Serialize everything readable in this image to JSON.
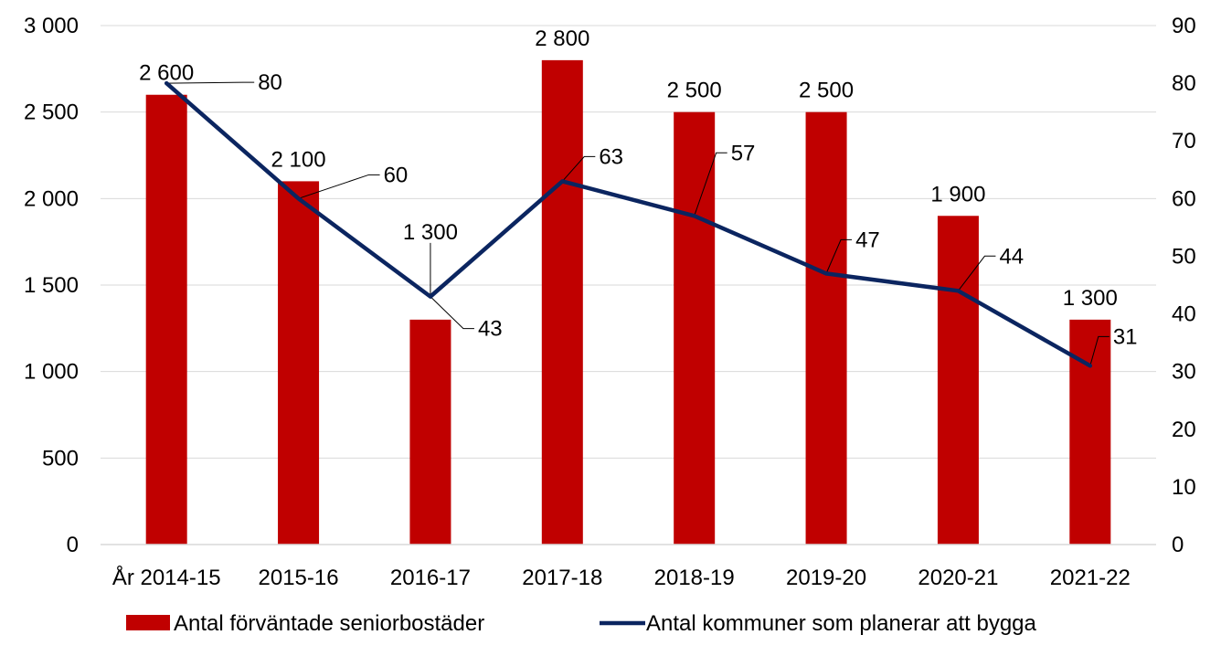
{
  "chart_data": {
    "type": "bar",
    "categories": [
      "År 2014-15",
      "2015-16",
      "2016-17",
      "2017-18",
      "2018-19",
      "2019-20",
      "2020-21",
      "2021-22"
    ],
    "series": [
      {
        "name": "Antal förväntade seniorbostäder",
        "type": "bar",
        "axis": "left",
        "color": "#c00000",
        "values": [
          2600,
          2100,
          1300,
          2800,
          2500,
          2500,
          1900,
          1300
        ],
        "labels": [
          "2 600",
          "2 100",
          "1 300",
          "2 800",
          "2 500",
          "2 500",
          "1 900",
          "1 300"
        ]
      },
      {
        "name": "Antal kommuner som planerar att bygga",
        "type": "line",
        "axis": "right",
        "color": "#0b2560",
        "values": [
          80,
          60,
          43,
          63,
          57,
          47,
          44,
          31
        ],
        "labels": [
          "80",
          "60",
          "43",
          "63",
          "57",
          "47",
          "44",
          "31"
        ]
      }
    ],
    "y_left": {
      "range": [
        0,
        3000
      ],
      "ticks": [
        0,
        500,
        1000,
        1500,
        2000,
        2500,
        3000
      ],
      "tick_labels": [
        "0",
        "500",
        "1 000",
        "1 500",
        "2 000",
        "2 500",
        "3 000"
      ]
    },
    "y_right": {
      "range": [
        0,
        90
      ],
      "ticks": [
        0,
        10,
        20,
        30,
        40,
        50,
        60,
        70,
        80,
        90
      ],
      "tick_labels": [
        "0",
        "10",
        "20",
        "30",
        "40",
        "50",
        "60",
        "70",
        "80",
        "90"
      ]
    },
    "grid": true,
    "legend_position": "bottom",
    "title": ""
  }
}
